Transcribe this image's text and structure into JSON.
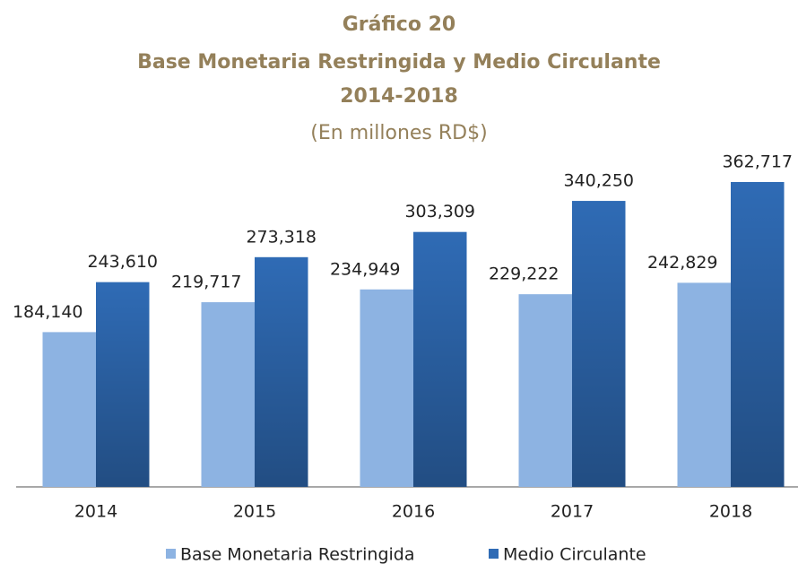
{
  "chart_data": {
    "type": "bar",
    "title": "Gráfico 20",
    "subtitle_lines": [
      "Base Monetaria Restringida y Medio Circulante",
      "2014-2018"
    ],
    "subtitle": "(En millones RD$)",
    "categories": [
      "2014",
      "2015",
      "2016",
      "2017",
      "2018"
    ],
    "series": [
      {
        "name": "Base Monetaria Restringida",
        "color": "#8db3e2",
        "values": [
          184140,
          219717,
          234949,
          229222,
          242829
        ],
        "value_labels": [
          "184,140",
          "219,717",
          "234,949",
          "229,222",
          "242,829"
        ]
      },
      {
        "name": "Medio Circulante",
        "color": "#2f6bb5",
        "values": [
          243610,
          273318,
          303309,
          340250,
          362717
        ],
        "value_labels": [
          "243,610",
          "273,318",
          "303,309",
          "340,250",
          "362,717"
        ]
      }
    ],
    "legend": "bottom"
  }
}
